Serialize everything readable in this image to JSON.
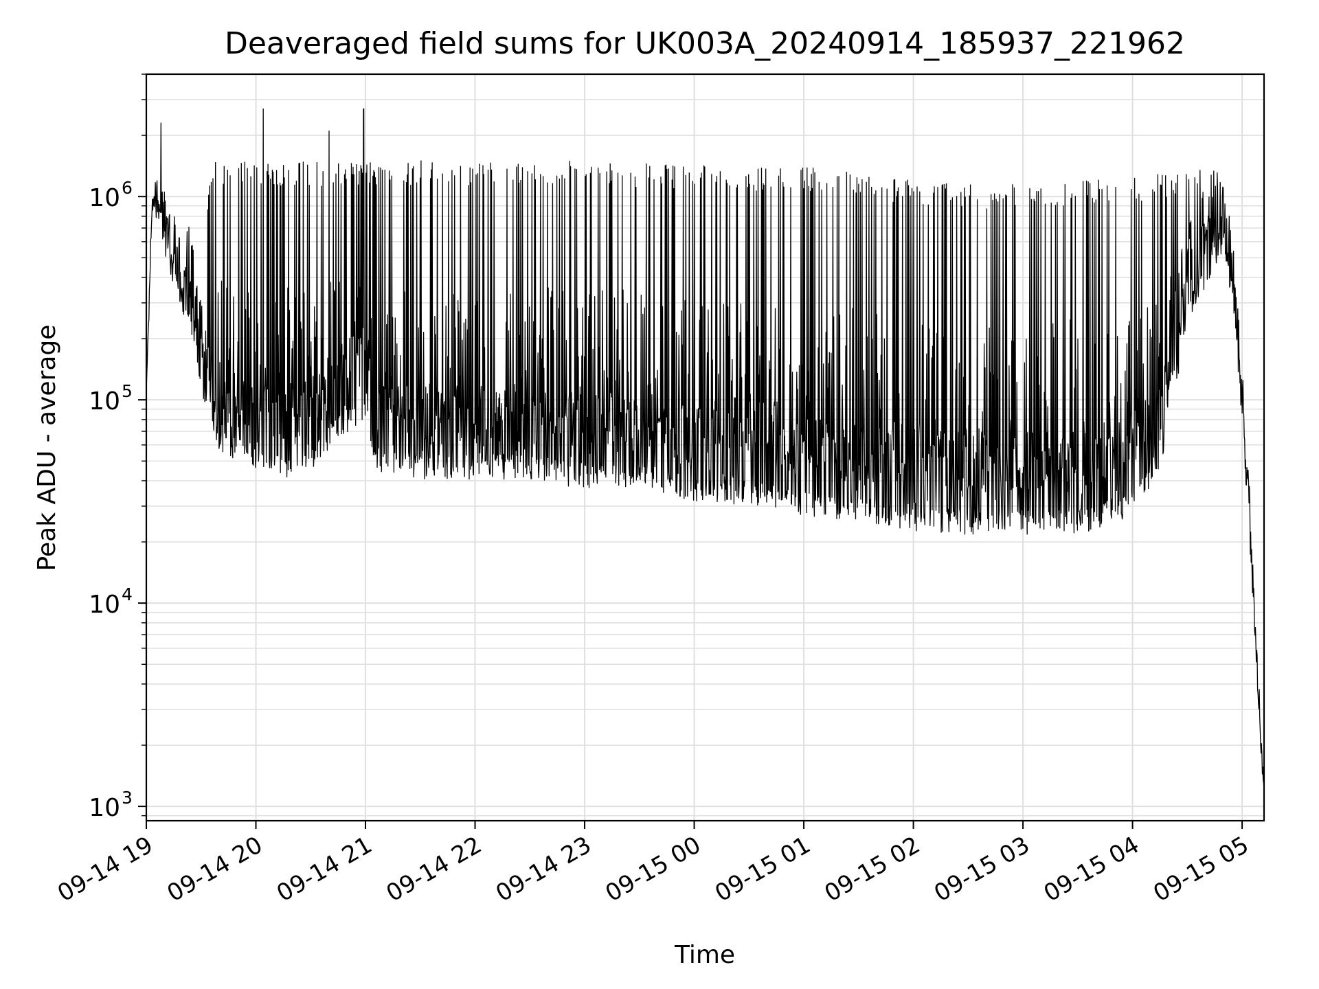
{
  "chart_data": {
    "type": "line",
    "title": "Deaveraged field sums for UK003A_20240914_185937_221962",
    "xlabel": "Time",
    "ylabel": "Peak ADU - average",
    "yscale": "log",
    "ylim": [
      850,
      4000000
    ],
    "xlim": [
      "09-14 19:00",
      "09-15 05:12"
    ],
    "grid": true,
    "line_color": "#000000",
    "grid_color": "#e0e0e0",
    "x_ticks": [
      "09-14 19",
      "09-14 20",
      "09-14 21",
      "09-14 22",
      "09-14 23",
      "09-15 00",
      "09-15 01",
      "09-15 02",
      "09-15 03",
      "09-15 04",
      "09-15 05"
    ],
    "y_ticks": [
      {
        "base": "10",
        "exp": "3",
        "value": 1000
      },
      {
        "base": "10",
        "exp": "4",
        "value": 10000
      },
      {
        "base": "10",
        "exp": "5",
        "value": 100000
      },
      {
        "base": "10",
        "exp": "6",
        "value": 1000000
      }
    ],
    "series": [
      {
        "envelope": {
          "time": [
            "09-14 19:00",
            "09-14 19:03",
            "09-14 19:05",
            "09-14 19:08",
            "09-14 19:12",
            "09-14 19:18",
            "09-14 19:25",
            "09-14 19:30",
            "09-14 19:35",
            "09-14 19:40",
            "09-14 19:50",
            "09-14 20:00",
            "09-14 20:15",
            "09-14 20:30",
            "09-14 20:45",
            "09-14 21:00",
            "09-14 21:05",
            "09-14 21:30",
            "09-14 22:00",
            "09-14 22:30",
            "09-14 23:00",
            "09-14 23:30",
            "09-15 00:00",
            "09-15 00:30",
            "09-15 01:00",
            "09-15 01:30",
            "09-15 02:00",
            "09-15 02:30",
            "09-15 03:00",
            "09-15 03:30",
            "09-15 04:00",
            "09-15 04:15",
            "09-15 04:30",
            "09-15 04:45",
            "09-15 04:50",
            "09-15 04:55",
            "09-15 05:00",
            "09-15 05:05",
            "09-15 05:10",
            "09-15 05:12"
          ],
          "high": [
            110000,
            1000000,
            1400000,
            1600000,
            900000,
            800000,
            700000,
            500000,
            1500000,
            1500000,
            1500000,
            1500000,
            1500000,
            1500000,
            1500000,
            1500000,
            1450000,
            1500000,
            1500000,
            1500000,
            1500000,
            1450000,
            1450000,
            1400000,
            1400000,
            1300000,
            1200000,
            1150000,
            1150000,
            1200000,
            1250000,
            1300000,
            1350000,
            1350000,
            1250000,
            600000,
            150000,
            30000,
            3000,
            1200
          ],
          "low": [
            110000,
            800000,
            900000,
            700000,
            500000,
            300000,
            200000,
            120000,
            90000,
            60000,
            55000,
            50000,
            45000,
            50000,
            70000,
            90000,
            50000,
            45000,
            45000,
            45000,
            40000,
            40000,
            35000,
            33000,
            30000,
            28000,
            25000,
            24000,
            24000,
            24000,
            30000,
            50000,
            250000,
            500000,
            600000,
            300000,
            80000,
            15000,
            2000,
            1200
          ],
          "base": [
            110000,
            900000,
            1000000,
            800000,
            600000,
            400000,
            250000,
            150000,
            100000,
            80000,
            70000,
            65000,
            60000,
            70000,
            90000,
            120000,
            70000,
            60000,
            60000,
            55000,
            55000,
            55000,
            55000,
            50000,
            45000,
            40000,
            40000,
            35000,
            35000,
            35000,
            45000,
            60000,
            400000,
            700000,
            750000,
            400000,
            90000,
            18000,
            2500,
            1200
          ]
        },
        "peaks": [
          {
            "time": "09-14 19:08",
            "value": 2300000
          },
          {
            "time": "09-14 20:04",
            "value": 2700000
          },
          {
            "time": "09-14 20:40",
            "value": 2100000
          },
          {
            "time": "09-14 20:59",
            "value": 2700000
          }
        ]
      }
    ]
  }
}
